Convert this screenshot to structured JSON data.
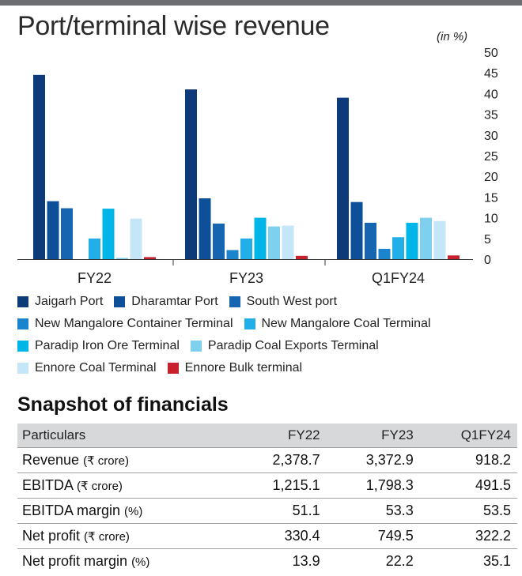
{
  "chart_data": {
    "type": "bar",
    "title": "Port/terminal wise revenue",
    "unit_note": "(in %)",
    "categories": [
      "FY22",
      "FY23",
      "Q1FY24"
    ],
    "ylim": [
      0,
      50
    ],
    "yticks": [
      "0",
      "5",
      "10",
      "15",
      "20",
      "25",
      "30",
      "35",
      "40",
      "45",
      "50"
    ],
    "grid": false,
    "legend_position": "bottom",
    "series": [
      {
        "name": "Jaigarh Port",
        "color": "#0d3a78",
        "values": [
          44.5,
          41,
          39
        ]
      },
      {
        "name": "Dharamtar Port",
        "color": "#0e4f99",
        "values": [
          14,
          14.7,
          13.8
        ]
      },
      {
        "name": "South West port",
        "color": "#1565b0",
        "values": [
          12.3,
          8.6,
          8.8
        ]
      },
      {
        "name": "New Mangalore Container Terminal",
        "color": "#1b84cf",
        "values": [
          0,
          2.2,
          2.5
        ]
      },
      {
        "name": "New Mangalore Coal Terminal",
        "color": "#22aee6",
        "values": [
          5,
          5,
          5.3
        ]
      },
      {
        "name": "Paradip Iron Ore Terminal",
        "color": "#00b5e8",
        "values": [
          12.2,
          10,
          8.8
        ]
      },
      {
        "name": "Paradip Coal Exports Terminal",
        "color": "#7fd0ee",
        "values": [
          0.3,
          7.9,
          10
        ]
      },
      {
        "name": "Ennore Coal Terminal",
        "color": "#c5e6f6",
        "values": [
          9.8,
          8.1,
          9.2
        ]
      },
      {
        "name": "Ennore Bulk terminal",
        "color": "#c8202c",
        "values": [
          0.5,
          0.8,
          0.9
        ]
      }
    ]
  },
  "legend_rows": [
    [
      0,
      1,
      2
    ],
    [
      3,
      4
    ],
    [
      5,
      6
    ],
    [
      7,
      8
    ]
  ],
  "financials": {
    "title": "Snapshot of financials",
    "header": [
      "Particulars",
      "FY22",
      "FY23",
      "Q1FY24"
    ],
    "rows": [
      {
        "label": "Revenue",
        "unit": "(₹ crore)",
        "values": [
          "2,378.7",
          "3,372.9",
          "918.2"
        ]
      },
      {
        "label": "EBITDA",
        "unit": "(₹ crore)",
        "values": [
          "1,215.1",
          "1,798.3",
          "491.5"
        ]
      },
      {
        "label": "EBITDA margin",
        "unit": "(%)",
        "values": [
          "51.1",
          "53.3",
          "53.5"
        ]
      },
      {
        "label": "Net profit",
        "unit": "(₹ crore)",
        "values": [
          "330.4",
          "749.5",
          "322.2"
        ]
      },
      {
        "label": "Net profit margin",
        "unit": "(%)",
        "values": [
          "13.9",
          "22.2",
          "35.1"
        ]
      }
    ]
  }
}
